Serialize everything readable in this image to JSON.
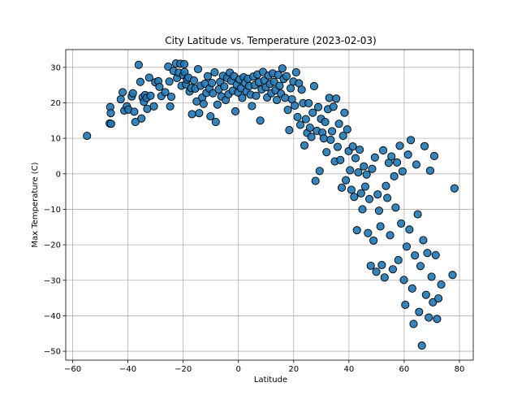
{
  "chart_data": {
    "type": "scatter",
    "title": "City Latitude vs. Temperature (2023-02-03)",
    "xlabel": "Latitude",
    "ylabel": "Max Temperature (C)",
    "xlim": [
      -62.5,
      85
    ],
    "ylim": [
      -52.5,
      35
    ],
    "xticks": [
      -60,
      -40,
      -20,
      0,
      20,
      40,
      60,
      80
    ],
    "yticks": [
      -50,
      -40,
      -30,
      -20,
      -10,
      0,
      10,
      20,
      30
    ],
    "grid": true,
    "legend": "none",
    "marker_color": "#1f77b4",
    "marker_edge_color": "#000000",
    "series": [
      {
        "points": [
          [
            -54.8,
            10.7
          ],
          [
            -46.4,
            18.8
          ],
          [
            -46.2,
            17.1
          ],
          [
            -46.6,
            14.2
          ],
          [
            -46.1,
            14.1
          ],
          [
            -42.6,
            21.0
          ],
          [
            -41.9,
            23.0
          ],
          [
            -41.3,
            17.8
          ],
          [
            -40.4,
            19.0
          ],
          [
            -39.8,
            18.1
          ],
          [
            -38.6,
            21.8
          ],
          [
            -38.2,
            22.7
          ],
          [
            -37.7,
            17.5
          ],
          [
            -37.3,
            14.6
          ],
          [
            -36.1,
            30.7
          ],
          [
            -35.5,
            25.9
          ],
          [
            -35.1,
            15.6
          ],
          [
            -34.7,
            21.5
          ],
          [
            -34.2,
            20.3
          ],
          [
            -33.8,
            22.2
          ],
          [
            -33.2,
            21.4
          ],
          [
            -33.0,
            18.3
          ],
          [
            -32.3,
            27.1
          ],
          [
            -31.8,
            22.0
          ],
          [
            -30.6,
            19.0
          ],
          [
            -30.1,
            25.8
          ],
          [
            -29.0,
            26.1
          ],
          [
            -28.6,
            24.5
          ],
          [
            -27.9,
            21.9
          ],
          [
            -26.5,
            23.0
          ],
          [
            -25.4,
            30.2
          ],
          [
            -25.0,
            26.0
          ],
          [
            -24.3,
            21.7
          ],
          [
            -24.7,
            19.0
          ],
          [
            -23.5,
            29.0
          ],
          [
            -22.6,
            31.1
          ],
          [
            -22.2,
            27.0
          ],
          [
            -21.6,
            28.5
          ],
          [
            -21.0,
            31.0
          ],
          [
            -20.6,
            24.8
          ],
          [
            -20.0,
            27.8
          ],
          [
            -19.6,
            30.9
          ],
          [
            -19.5,
            28.7
          ],
          [
            -19.0,
            25.2
          ],
          [
            -18.6,
            26.6
          ],
          [
            -18.1,
            27.1
          ],
          [
            -17.7,
            23.2
          ],
          [
            -17.1,
            24.2
          ],
          [
            -16.8,
            16.8
          ],
          [
            -16.1,
            26.3
          ],
          [
            -15.6,
            24.0
          ],
          [
            -15.1,
            20.4
          ],
          [
            -14.6,
            29.5
          ],
          [
            -14.2,
            17.1
          ],
          [
            -13.7,
            24.8
          ],
          [
            -13.1,
            21.5
          ],
          [
            -12.6,
            19.7
          ],
          [
            -12.1,
            25.4
          ],
          [
            -11.6,
            22.8
          ],
          [
            -11.1,
            27.5
          ],
          [
            -10.5,
            24.0
          ],
          [
            -10.1,
            16.2
          ],
          [
            -9.6,
            25.6
          ],
          [
            -9.2,
            22.7
          ],
          [
            -8.6,
            28.6
          ],
          [
            -8.2,
            14.6
          ],
          [
            -7.6,
            19.5
          ],
          [
            -7.1,
            23.8
          ],
          [
            -6.6,
            25.9
          ],
          [
            -6.2,
            21.8
          ],
          [
            -5.6,
            27.6
          ],
          [
            -5.1,
            24.6
          ],
          [
            -4.6,
            20.8
          ],
          [
            -4.1,
            27.0
          ],
          [
            -3.6,
            22.4
          ],
          [
            -3.1,
            28.5
          ],
          [
            -2.6,
            26.2
          ],
          [
            -2.1,
            23.4
          ],
          [
            -1.6,
            27.5
          ],
          [
            -1.1,
            17.6
          ],
          [
            -0.6,
            25.1
          ],
          [
            -0.1,
            22.9
          ],
          [
            0.4,
            26.6
          ],
          [
            0.9,
            24.1
          ],
          [
            1.4,
            21.4
          ],
          [
            1.9,
            27.2
          ],
          [
            2.4,
            25.6
          ],
          [
            2.9,
            23.2
          ],
          [
            3.4,
            26.8
          ],
          [
            3.9,
            24.7
          ],
          [
            4.4,
            22.3
          ],
          [
            4.9,
            19.1
          ],
          [
            5.4,
            27.4
          ],
          [
            5.9,
            25.0
          ],
          [
            6.4,
            22.0
          ],
          [
            6.9,
            28.0
          ],
          [
            7.4,
            25.8
          ],
          [
            7.9,
            15.0
          ],
          [
            8.4,
            23.8
          ],
          [
            8.9,
            28.7
          ],
          [
            9.4,
            26.3
          ],
          [
            9.9,
            24.4
          ],
          [
            10.4,
            21.5
          ],
          [
            10.9,
            27.7
          ],
          [
            11.4,
            25.3
          ],
          [
            11.9,
            22.7
          ],
          [
            12.4,
            28.3
          ],
          [
            12.9,
            25.9
          ],
          [
            13.4,
            23.5
          ],
          [
            13.9,
            20.8
          ],
          [
            14.4,
            27.9
          ],
          [
            14.9,
            24.8
          ],
          [
            15.4,
            22.6
          ],
          [
            15.9,
            29.7
          ],
          [
            16.4,
            26.7
          ],
          [
            16.9,
            21.4
          ],
          [
            17.4,
            27.5
          ],
          [
            17.9,
            18.0
          ],
          [
            18.4,
            12.3
          ],
          [
            18.9,
            24.1
          ],
          [
            19.4,
            21.0
          ],
          [
            19.9,
            26.0
          ],
          [
            20.4,
            19.2
          ],
          [
            20.9,
            28.6
          ],
          [
            21.4,
            16.0
          ],
          [
            21.9,
            25.5
          ],
          [
            22.4,
            13.8
          ],
          [
            22.9,
            23.7
          ],
          [
            23.4,
            19.9
          ],
          [
            23.9,
            8.0
          ],
          [
            24.4,
            15.4
          ],
          [
            24.9,
            11.5
          ],
          [
            25.4,
            19.9
          ],
          [
            25.9,
            13.0
          ],
          [
            26.4,
            10.4
          ],
          [
            26.9,
            17.2
          ],
          [
            27.4,
            24.7
          ],
          [
            27.9,
            -2.0
          ],
          [
            28.4,
            12.1
          ],
          [
            28.9,
            18.8
          ],
          [
            29.4,
            0.8
          ],
          [
            29.9,
            15.5
          ],
          [
            30.4,
            11.6
          ],
          [
            30.9,
            10.0
          ],
          [
            31.4,
            14.6
          ],
          [
            31.9,
            6.1
          ],
          [
            32.4,
            18.2
          ],
          [
            32.9,
            21.4
          ],
          [
            33.4,
            9.6
          ],
          [
            33.9,
            12.0
          ],
          [
            34.4,
            18.9
          ],
          [
            34.9,
            3.5
          ],
          [
            35.4,
            21.2
          ],
          [
            35.9,
            7.6
          ],
          [
            36.4,
            14.1
          ],
          [
            36.9,
            3.9
          ],
          [
            37.4,
            -3.9
          ],
          [
            37.9,
            10.7
          ],
          [
            38.4,
            17.2
          ],
          [
            38.9,
            -1.8
          ],
          [
            39.4,
            12.5
          ],
          [
            39.9,
            6.4
          ],
          [
            40.4,
            1.0
          ],
          [
            40.9,
            -4.5
          ],
          [
            41.4,
            7.7
          ],
          [
            41.9,
            -6.5
          ],
          [
            42.4,
            4.4
          ],
          [
            42.9,
            -15.9
          ],
          [
            43.4,
            0.4
          ],
          [
            43.9,
            6.8
          ],
          [
            44.4,
            -5.5
          ],
          [
            44.9,
            -10.0
          ],
          [
            45.4,
            2.1
          ],
          [
            45.9,
            -3.6
          ],
          [
            46.4,
            -0.2
          ],
          [
            46.9,
            -16.7
          ],
          [
            47.4,
            -7.1
          ],
          [
            47.9,
            -25.9
          ],
          [
            48.4,
            1.4
          ],
          [
            48.9,
            -18.8
          ],
          [
            49.4,
            4.6
          ],
          [
            49.9,
            -27.6
          ],
          [
            50.4,
            -5.8
          ],
          [
            50.9,
            -10.4
          ],
          [
            51.4,
            -14.8
          ],
          [
            51.9,
            -25.7
          ],
          [
            52.4,
            6.6
          ],
          [
            52.9,
            -29.2
          ],
          [
            53.4,
            -3.4
          ],
          [
            53.9,
            -6.8
          ],
          [
            54.4,
            3.1
          ],
          [
            54.9,
            -17.3
          ],
          [
            55.4,
            4.9
          ],
          [
            55.9,
            -26.9
          ],
          [
            56.4,
            -0.7
          ],
          [
            56.9,
            -9.5
          ],
          [
            57.4,
            3.2
          ],
          [
            57.9,
            -24.3
          ],
          [
            58.4,
            7.9
          ],
          [
            58.9,
            -14.0
          ],
          [
            59.4,
            0.7
          ],
          [
            59.9,
            -29.9
          ],
          [
            60.4,
            -36.9
          ],
          [
            60.9,
            -20.5
          ],
          [
            61.4,
            5.4
          ],
          [
            61.9,
            -15.7
          ],
          [
            62.4,
            9.5
          ],
          [
            62.9,
            -32.3
          ],
          [
            63.4,
            -42.3
          ],
          [
            63.9,
            -23.0
          ],
          [
            64.4,
            2.6
          ],
          [
            64.9,
            -11.4
          ],
          [
            65.4,
            -38.9
          ],
          [
            65.9,
            -26.0
          ],
          [
            66.4,
            -48.4
          ],
          [
            66.9,
            -18.7
          ],
          [
            67.4,
            7.8
          ],
          [
            67.9,
            -34.1
          ],
          [
            68.4,
            -22.3
          ],
          [
            68.9,
            -40.5
          ],
          [
            69.4,
            0.9
          ],
          [
            69.9,
            -29.0
          ],
          [
            70.4,
            -36.2
          ],
          [
            70.9,
            5.0
          ],
          [
            71.4,
            -22.9
          ],
          [
            71.9,
            -40.9
          ],
          [
            72.4,
            -35.1
          ],
          [
            73.4,
            -31.2
          ],
          [
            77.5,
            -28.5
          ],
          [
            78.2,
            -4.1
          ]
        ]
      }
    ]
  }
}
